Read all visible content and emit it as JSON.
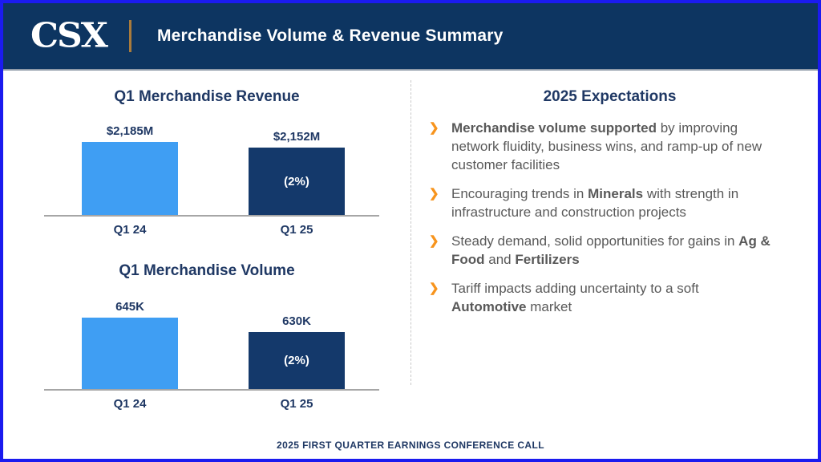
{
  "header": {
    "logo_text": "CSX",
    "title": "Merchandise Volume & Revenue Summary"
  },
  "chart_data": [
    {
      "type": "bar",
      "title": "Q1 Merchandise Revenue",
      "categories": [
        "Q1 24",
        "Q1 25"
      ],
      "values": [
        2185,
        2152
      ],
      "value_labels": [
        "$2,185M",
        "$2,152M"
      ],
      "change_labels": [
        "",
        "(2%)"
      ],
      "bar_colors": [
        "#3f9ef3",
        "#14396b"
      ],
      "ylim": [
        1800,
        2200
      ],
      "grid": false,
      "legend": "none",
      "xlabel": "",
      "ylabel": ""
    },
    {
      "type": "bar",
      "title": "Q1 Merchandise Volume",
      "categories": [
        "Q1 24",
        "Q1 25"
      ],
      "values": [
        645,
        630
      ],
      "value_labels": [
        "645K",
        "630K"
      ],
      "change_labels": [
        "",
        "(2%)"
      ],
      "bar_colors": [
        "#3f9ef3",
        "#14396b"
      ],
      "ylim": [
        570,
        650
      ],
      "grid": false,
      "legend": "none",
      "xlabel": "",
      "ylabel": ""
    }
  ],
  "expectations": {
    "title": "2025 Expectations",
    "bullet_icon": "❯",
    "bullets": [
      {
        "segments": [
          {
            "t": "Merchandise volume supported",
            "b": true
          },
          {
            "t": " by improving network fluidity, business wins, and ramp-up of new customer facilities",
            "b": false
          }
        ]
      },
      {
        "segments": [
          {
            "t": "Encouraging trends in ",
            "b": false
          },
          {
            "t": "Minerals",
            "b": true
          },
          {
            "t": " with strength in infrastructure and construction projects",
            "b": false
          }
        ]
      },
      {
        "segments": [
          {
            "t": "Steady demand, solid opportunities for gains in ",
            "b": false
          },
          {
            "t": "Ag & Food",
            "b": true
          },
          {
            "t": " and ",
            "b": false
          },
          {
            "t": "Fertilizers",
            "b": true
          }
        ]
      },
      {
        "segments": [
          {
            "t": "Tariff impacts adding uncertainty to a soft ",
            "b": false
          },
          {
            "t": "Automotive",
            "b": true
          },
          {
            "t": " market",
            "b": false
          }
        ]
      }
    ]
  },
  "footer": {
    "text": "2025 FIRST QUARTER EARNINGS CONFERENCE CALL"
  },
  "colors": {
    "header_navy": "#0d3561",
    "bar_light_blue": "#3f9ef3",
    "bar_dark_navy": "#14396b",
    "title_navy": "#1f3864",
    "body_gray": "#595959",
    "bullet_orange": "#f7941d",
    "axis_gray": "#a6a6a6",
    "outer_border_blue": "#1b1bef",
    "gold_divider": "#a97b3c"
  }
}
